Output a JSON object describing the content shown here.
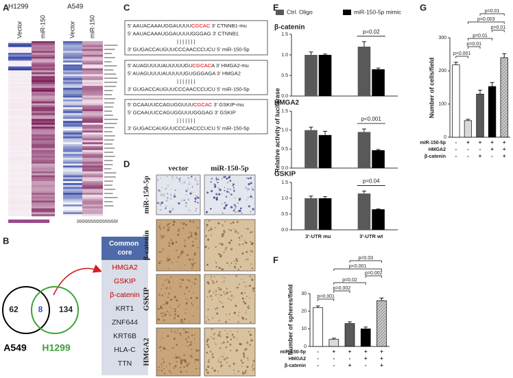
{
  "panel_labels": [
    "A",
    "B",
    "C",
    "D",
    "E",
    "F",
    "G"
  ],
  "heatmap": {
    "groups": [
      {
        "name": "H1299",
        "columns": [
          "Vector",
          "miR-150"
        ]
      },
      {
        "name": "A549",
        "columns": [
          "Vector",
          "miR-150"
        ]
      }
    ]
  },
  "venn": {
    "sets": [
      {
        "name": "A549",
        "count": 62,
        "color": "#000000"
      },
      {
        "name": "H1299",
        "count": 134,
        "color": "#3aa335"
      }
    ],
    "overlap": 8
  },
  "common_core": {
    "title": "Common core",
    "genes": [
      {
        "name": "HMGA2",
        "color": "#c00000"
      },
      {
        "name": "GSKIP",
        "color": "#c00000"
      },
      {
        "name": "β-catenin",
        "color": "#c00000"
      },
      {
        "name": "KRT1",
        "color": "#222222"
      },
      {
        "name": "ZNF644",
        "color": "#222222"
      },
      {
        "name": "KRT6B",
        "color": "#222222"
      },
      {
        "name": "HLA-C",
        "color": "#222222"
      },
      {
        "name": "TTN",
        "color": "#222222"
      }
    ]
  },
  "sequences": [
    {
      "lines": [
        [
          {
            "text": "5' AAUACAAAUGGAUUUU"
          },
          {
            "text": "CGCAC",
            "color": "#e00000"
          },
          {
            "text": " 3' CTNNB1-mu"
          }
        ],
        [
          {
            "text": "5' AAUACAAAUGGAUUUUGGGAG 3' CTNNB1"
          }
        ],
        [
          {
            "text": "| | | | | | |"
          }
        ],
        [
          {
            "text": "3' GUGACCAUGUUCCCAACCCUCU 5' miR-150-5p"
          }
        ]
      ]
    },
    {
      "lines": [
        [
          {
            "text": "5' AUAGUUUUAUUUUUGU"
          },
          {
            "text": "CGCAC",
            "color": "#e00000"
          },
          {
            "text": "A 3' HMGA2-mu"
          }
        ],
        [
          {
            "text": "5' AUAGUUUUAUUUUUGUGGGAGA 3' HMGA2"
          }
        ],
        [
          {
            "text": "| | | | | | |"
          }
        ],
        [
          {
            "text": "3' GUGACCAUGUUCCCAACCCUCU 5' miR-150-5p"
          }
        ]
      ]
    },
    {
      "lines": [
        [
          {
            "text": "5' GCAAUUCCAGUGGUUU"
          },
          {
            "text": "CGCAC",
            "color": "#e00000"
          },
          {
            "text": " 3' GSKIP-mu"
          }
        ],
        [
          {
            "text": "5' GCAAUUCCAGUGGUUUGGGAG 3' GSKIP"
          }
        ],
        [
          {
            "text": "| | | | | | |"
          }
        ],
        [
          {
            "text": "3' GUGACCAUGUUCCCAACCCUCU 5' miR-150-5p"
          }
        ]
      ]
    }
  ],
  "ihc": {
    "columns": [
      "vector",
      "miR-150-5p"
    ],
    "rows": [
      "miR-150-5p",
      "β-catenin",
      "GSKIP",
      "HMGA2"
    ]
  },
  "chart_data": [
    {
      "type": "bar",
      "title": "β-catenin",
      "series": [
        {
          "name": "Ctrl. Oligo",
          "color": "#595959",
          "values": [
            1.0,
            1.2
          ],
          "errors": [
            0.07,
            0.12
          ]
        },
        {
          "name": "miR-150-5p mimic",
          "color": "#000000",
          "values": [
            1.0,
            0.65
          ],
          "errors": [
            0.02,
            0.03
          ]
        }
      ],
      "ylim": [
        0,
        1.5
      ],
      "yticks": [
        {
          "value": 0,
          "label": "0.0"
        },
        0.5,
        {
          "value": 1,
          "label": "1.0"
        },
        1.5
      ],
      "annotation": "p=0.02"
    },
    {
      "type": "bar",
      "title": "HMGA2",
      "y_label": "Relative activity of luciferase",
      "series": [
        {
          "color": "#595959",
          "values": [
            1.0,
            0.95
          ],
          "errors": [
            0.08,
            0.08
          ]
        },
        {
          "color": "#000000",
          "values": [
            0.87,
            0.47
          ],
          "errors": [
            0.1,
            0.02
          ]
        }
      ],
      "ylim": [
        0,
        1.5
      ],
      "yticks": [
        {
          "value": 0,
          "label": "0.0"
        },
        0.5,
        {
          "value": 1,
          "label": "1.0"
        },
        1.5
      ],
      "annotation": "p<0.001"
    },
    {
      "type": "bar",
      "title": "GSKIP",
      "categories": [
        "3'-UTR mu",
        "3'-UTR wt"
      ],
      "series": [
        {
          "color": "#595959",
          "values": [
            1.0,
            1.15
          ],
          "errors": [
            0.07,
            0.08
          ]
        },
        {
          "color": "#000000",
          "values": [
            1.0,
            0.65
          ],
          "errors": [
            0.05,
            0.01
          ]
        }
      ],
      "ylim": [
        0,
        1.5
      ],
      "yticks": [
        {
          "value": 0,
          "label": "0.0"
        },
        0.5,
        {
          "value": 1,
          "label": "1.0"
        },
        1.5
      ],
      "annotation": "p=0.04"
    },
    {
      "type": "bar",
      "y_label": "Number of spheres/field",
      "values": [
        22,
        4,
        13,
        10,
        26
      ],
      "errors": [
        1,
        0.7,
        1,
        1,
        1.5
      ],
      "colors": [
        "#ffffff",
        "#d9d9d9",
        "#595959",
        "#000000",
        "#bfbfbf"
      ],
      "hatch": [
        false,
        false,
        false,
        false,
        true
      ],
      "ylim": [
        0,
        30
      ],
      "yticks": [
        0,
        10,
        20,
        30
      ],
      "annotations": [
        "p<0.001",
        "p=0.002",
        "p=0.02",
        "p<0.001",
        "p=0.002",
        "p=0.03"
      ],
      "conditions": [
        {
          "name": "miR-150-5p",
          "values": [
            "-",
            "+",
            "+",
            "+",
            "+"
          ]
        },
        {
          "name": "HMGA2",
          "values": [
            "-",
            "-",
            "-",
            "+",
            "+"
          ]
        },
        {
          "name": "β-catenin",
          "values": [
            "-",
            "-",
            "+",
            "-",
            "+"
          ]
        }
      ]
    },
    {
      "type": "bar",
      "y_label": "Number of cells/field",
      "values": [
        218,
        50,
        130,
        153,
        240
      ],
      "errors": [
        8,
        4,
        12,
        12,
        12
      ],
      "colors": [
        "#ffffff",
        "#d9d9d9",
        "#595959",
        "#000000",
        "#bfbfbf"
      ],
      "hatch": [
        false,
        false,
        false,
        false,
        true
      ],
      "ylim": [
        0,
        300
      ],
      "yticks": [
        0,
        100,
        200,
        300
      ],
      "annotations": [
        "p<0.001",
        "p=0.01",
        "p=0.01",
        "p=0.003",
        "p=0.01",
        "p=0.01"
      ],
      "conditions": [
        {
          "name": "miR-150-5p",
          "values": [
            "-",
            "+",
            "+",
            "+",
            "+"
          ]
        },
        {
          "name": "HMGA2",
          "values": [
            "-",
            "-",
            "-",
            "+",
            "+"
          ]
        },
        {
          "name": "β-catenin",
          "values": [
            "-",
            "-",
            "+",
            "-",
            "+"
          ]
        }
      ]
    }
  ]
}
